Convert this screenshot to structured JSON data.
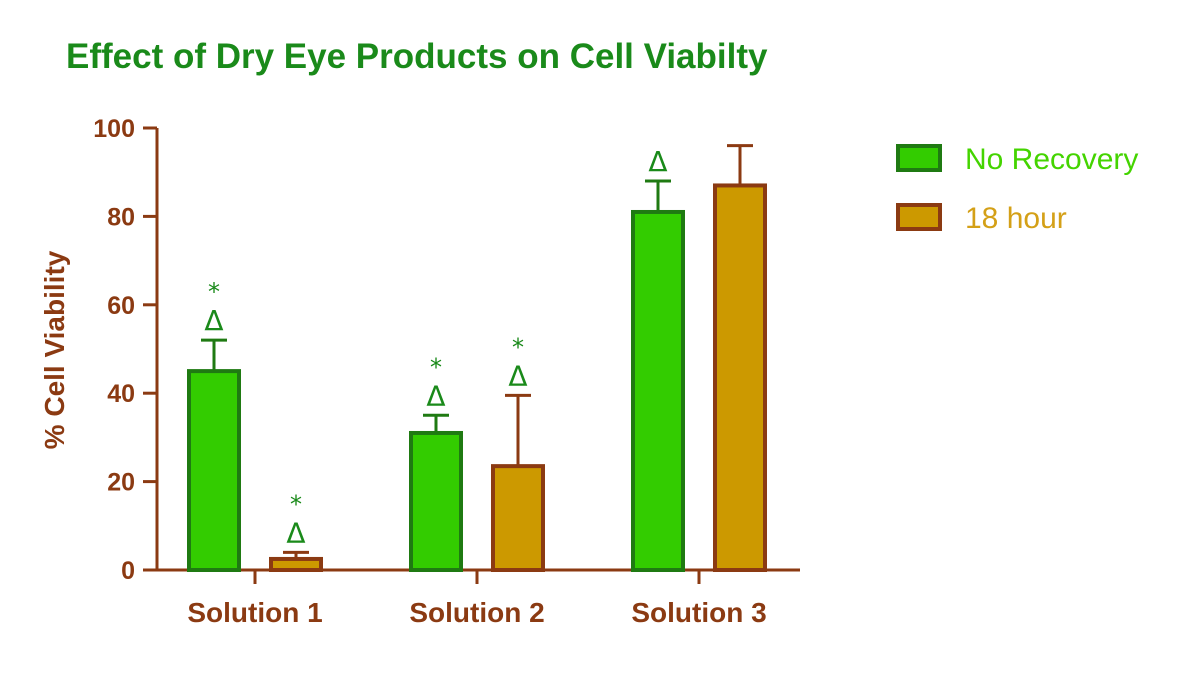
{
  "colors": {
    "axis": "#8b3a12",
    "title": "#1a8a1a",
    "no_recovery_fill": "#33cc00",
    "no_recovery_stroke": "#1f7a12",
    "hour18_fill": "#cc9900",
    "hour18_stroke": "#8b3a12",
    "legend_no_recovery_text": "#44d400",
    "legend_18h_text": "#d4a017",
    "annot_green": "#1a8a1a"
  },
  "chart_data": {
    "type": "bar",
    "title": "Effect of Dry Eye Products on Cell Viabilty",
    "xlabel": "",
    "ylabel": "% Cell Viability",
    "ylim": [
      0,
      100
    ],
    "yticks": [
      0,
      20,
      40,
      60,
      80,
      100
    ],
    "grid": false,
    "legend_position": "right",
    "categories": [
      "Solution 1",
      "Solution 2",
      "Solution 3"
    ],
    "series": [
      {
        "name": "No Recovery",
        "values": [
          45,
          31,
          81
        ],
        "errors": [
          7,
          4,
          7
        ],
        "annotations": [
          [
            "*",
            "Δ"
          ],
          [
            "*",
            "Δ"
          ],
          [
            "Δ"
          ]
        ]
      },
      {
        "name": "18 hour",
        "values": [
          2.5,
          23.5,
          87
        ],
        "errors": [
          1.5,
          16,
          9
        ],
        "annotations": [
          [
            "*",
            "Δ"
          ],
          [
            "*",
            "Δ"
          ],
          []
        ]
      }
    ]
  }
}
